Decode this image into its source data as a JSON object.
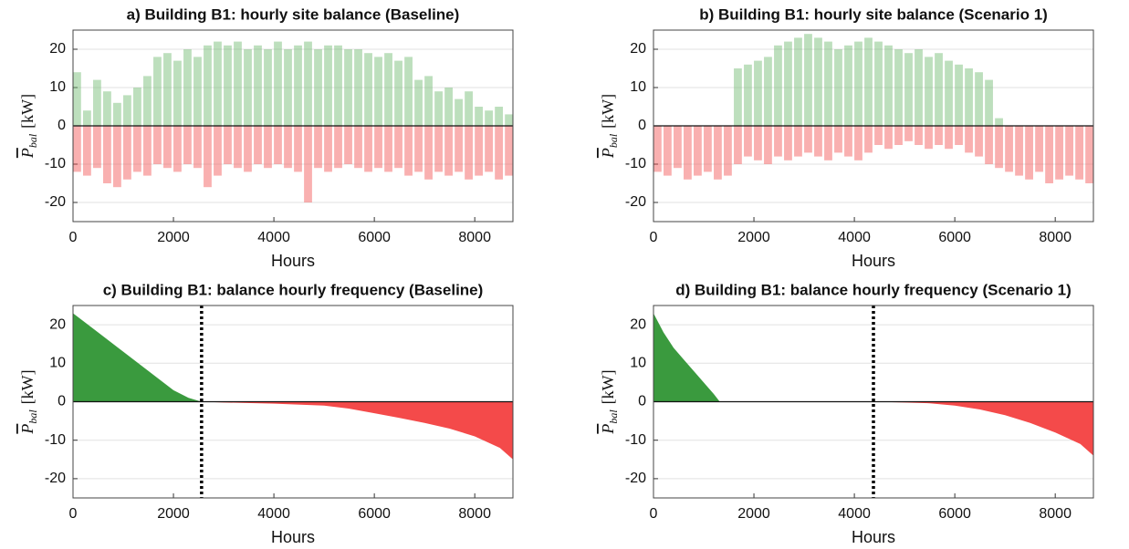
{
  "chart_data": [
    {
      "type": "bar",
      "title": "a) Building B1: hourly site balance (Baseline)",
      "xlabel": "Hours",
      "ylabel": {
        "symbol": "P",
        "subscript": "bal",
        "unit": "[kW]"
      },
      "xlim": [
        0,
        8760
      ],
      "ylim": [
        -25,
        25
      ],
      "xticks": [
        0,
        2000,
        4000,
        6000,
        8000
      ],
      "yticks": [
        -20,
        -10,
        0,
        10,
        20
      ],
      "grid": true,
      "x": [
        0,
        200,
        400,
        600,
        800,
        1000,
        1200,
        1400,
        1600,
        1800,
        2000,
        2200,
        2400,
        2600,
        2800,
        3000,
        3200,
        3400,
        3600,
        3800,
        4000,
        4200,
        4400,
        4600,
        4800,
        5000,
        5200,
        5400,
        5600,
        5800,
        6000,
        6200,
        6400,
        6600,
        6800,
        7000,
        7200,
        7400,
        7600,
        7800,
        8000,
        8200,
        8400,
        8600
      ],
      "series": [
        {
          "color": "#6cb86c",
          "values": [
            14,
            4,
            12,
            9,
            6,
            8,
            10,
            13,
            18,
            19,
            17,
            20,
            18,
            21,
            22,
            21,
            22,
            20,
            21,
            20,
            22,
            20,
            21,
            22,
            20,
            21,
            21,
            20,
            20,
            19,
            18,
            19,
            17,
            18,
            12,
            13,
            9,
            10,
            7,
            9,
            5,
            4,
            5,
            3
          ]
        },
        {
          "color": "#f25050",
          "values": [
            -12,
            -13,
            -11,
            -15,
            -16,
            -14,
            -12,
            -13,
            -10,
            -11,
            -12,
            -10,
            -11,
            -16,
            -13,
            -10,
            -11,
            -12,
            -10,
            -11,
            -10,
            -11,
            -12,
            -20,
            -11,
            -12,
            -11,
            -10,
            -11,
            -12,
            -11,
            -12,
            -11,
            -13,
            -12,
            -14,
            -12,
            -13,
            -12,
            -14,
            -13,
            -12,
            -14,
            -13
          ]
        }
      ]
    },
    {
      "type": "bar",
      "title": "b) Building B1: hourly site balance (Scenario 1)",
      "xlabel": "Hours",
      "ylabel": {
        "symbol": "P",
        "subscript": "bal",
        "unit": "[kW]"
      },
      "xlim": [
        0,
        8760
      ],
      "ylim": [
        -25,
        25
      ],
      "xticks": [
        0,
        2000,
        4000,
        6000,
        8000
      ],
      "yticks": [
        -20,
        -10,
        0,
        10,
        20
      ],
      "grid": true,
      "x": [
        0,
        200,
        400,
        600,
        800,
        1000,
        1200,
        1400,
        1600,
        1800,
        2000,
        2200,
        2400,
        2600,
        2800,
        3000,
        3200,
        3400,
        3600,
        3800,
        4000,
        4200,
        4400,
        4600,
        4800,
        5000,
        5200,
        5400,
        5600,
        5800,
        6000,
        6200,
        6400,
        6600,
        6800,
        7000,
        7200,
        7400,
        7600,
        7800,
        8000,
        8200,
        8400,
        8600
      ],
      "series": [
        {
          "color": "#6cb86c",
          "values": [
            0,
            0,
            0,
            0,
            0,
            0,
            0,
            0,
            15,
            16,
            17,
            18,
            21,
            22,
            23,
            24,
            23,
            22,
            20,
            21,
            22,
            23,
            22,
            21,
            20,
            19,
            20,
            18,
            19,
            17,
            16,
            15,
            14,
            12,
            2,
            0,
            0,
            0,
            0,
            0,
            0,
            0,
            0,
            0
          ]
        },
        {
          "color": "#f25050",
          "values": [
            -12,
            -13,
            -11,
            -14,
            -13,
            -12,
            -14,
            -13,
            -10,
            -8,
            -9,
            -10,
            -8,
            -9,
            -8,
            -7,
            -8,
            -9,
            -7,
            -8,
            -9,
            -7,
            -5,
            -6,
            -5,
            -4,
            -5,
            -6,
            -5,
            -6,
            -5,
            -7,
            -8,
            -10,
            -11,
            -12,
            -13,
            -14,
            -12,
            -15,
            -14,
            -13,
            -14,
            -15
          ]
        }
      ]
    },
    {
      "type": "area",
      "title": "c) Building B1: balance hourly frequency (Baseline)",
      "xlabel": "Hours",
      "ylabel": {
        "symbol": "P",
        "subscript": "bal",
        "unit": "[kW]"
      },
      "xlim": [
        0,
        8760
      ],
      "ylim": [
        -25,
        25
      ],
      "xticks": [
        0,
        2000,
        4000,
        6000,
        8000
      ],
      "yticks": [
        -20,
        -10,
        0,
        10,
        20
      ],
      "grid": true,
      "vline": 2560,
      "series": [
        {
          "color": "#3a9a3e",
          "x": [
            0,
            200,
            500,
            1000,
            1500,
            2000,
            2300,
            2560
          ],
          "values": [
            23,
            21,
            18,
            13,
            8,
            3,
            1,
            0
          ]
        },
        {
          "color": "#f44a4a",
          "x": [
            2560,
            3000,
            4000,
            5000,
            5500,
            6000,
            6500,
            7000,
            7500,
            8000,
            8500,
            8760
          ],
          "values": [
            0,
            -0.2,
            -0.5,
            -1,
            -1.8,
            -3,
            -4.2,
            -5.5,
            -7,
            -9,
            -12,
            -15
          ]
        }
      ]
    },
    {
      "type": "area",
      "title": "d) Building B1: balance hourly frequency (Scenario 1)",
      "xlabel": "Hours",
      "ylabel": {
        "symbol": "P",
        "subscript": "bal",
        "unit": "[kW]"
      },
      "xlim": [
        0,
        8760
      ],
      "ylim": [
        -25,
        25
      ],
      "xticks": [
        0,
        2000,
        4000,
        6000,
        8000
      ],
      "yticks": [
        -20,
        -10,
        0,
        10,
        20
      ],
      "grid": true,
      "vline": 4380,
      "series": [
        {
          "color": "#3a9a3e",
          "x": [
            0,
            200,
            400,
            600,
            800,
            1000,
            1200,
            1320
          ],
          "values": [
            23,
            18,
            14,
            11,
            8,
            5,
            2,
            0
          ]
        },
        {
          "color": "#f44a4a",
          "x": [
            4380,
            5000,
            5500,
            6000,
            6500,
            7000,
            7500,
            8000,
            8500,
            8760
          ],
          "values": [
            0,
            -0.2,
            -0.4,
            -1,
            -2,
            -3.5,
            -5.5,
            -8,
            -11,
            -14
          ]
        }
      ]
    }
  ]
}
